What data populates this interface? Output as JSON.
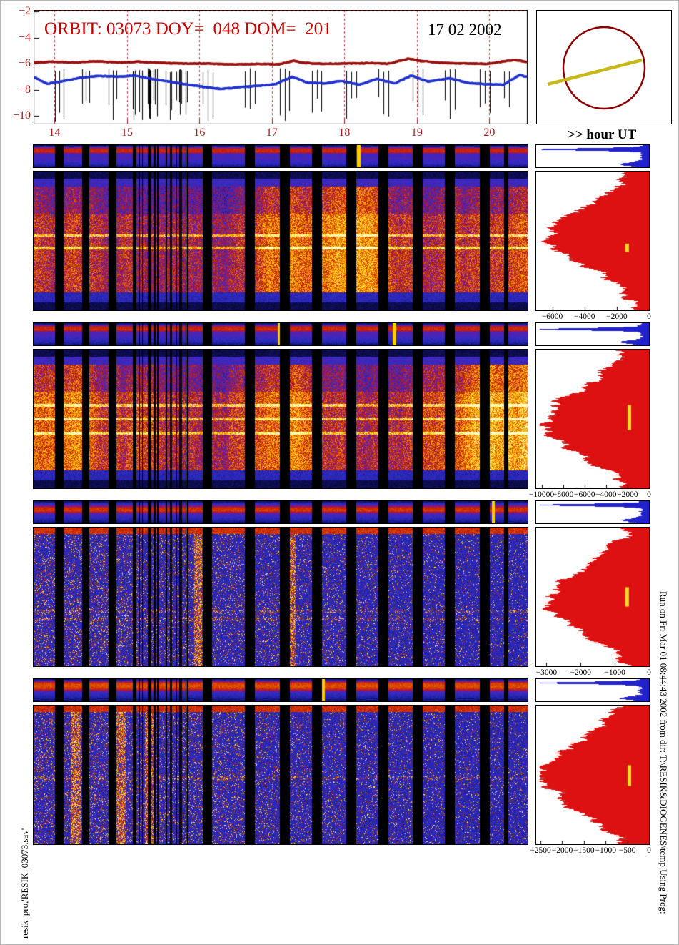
{
  "header": {
    "title": "ORBIT: 03073 DOY=  048 DOM=  201",
    "date": "17 02 2002",
    "hour_label": ">> hour UT"
  },
  "side_texts": {
    "left": "resik_pro,'RESIK_03073.sav'",
    "right": "Run on Fri Mar 01 08:44:43 2002  from dir: T:\\RESIK&DIOGENES\\temp Using Prog:"
  },
  "colors": {
    "title_red": "#c00000",
    "axis_red": "#a02020",
    "grid_red": "#cc3333",
    "curve_red": "#991111",
    "curve_blue": "#2233cc",
    "hist_red": "#dd1111",
    "hist_blue": "#2222cc",
    "mark_yellow": "#eedd22",
    "sun_circle": "#8b0000",
    "sun_line": "#c8b818",
    "frame": "#000000"
  },
  "chart_data": {
    "type": "heatmap",
    "title": "RESIK orbit 03073 summary: X-ray light curves (log flux vs hour UT), four channel spectrograms vs time, and per-channel integrated profiles",
    "palette": [
      "#000000",
      "#14147a",
      "#2e2ec8",
      "#7a1696",
      "#c81e00",
      "#f07800",
      "#ffd200",
      "#ffffc8"
    ],
    "top_plot": {
      "type": "line",
      "xlabel": "hour UT",
      "x_range": [
        13.71,
        20.53
      ],
      "y_range": [
        -10,
        -2
      ],
      "x_ticks": [
        14,
        15,
        16,
        17,
        18,
        19,
        20
      ],
      "y_ticks": [
        -2,
        -4,
        -6,
        -8,
        -10
      ],
      "grid": "red dashed vertical at each hour",
      "series": [
        {
          "name": "red-flux-curve",
          "color_key": "curve_red",
          "points": [
            [
              13.72,
              -5.92
            ],
            [
              14.0,
              -5.86
            ],
            [
              14.3,
              -5.92
            ],
            [
              14.55,
              -5.82
            ],
            [
              14.9,
              -5.92
            ],
            [
              15.15,
              -5.86
            ],
            [
              15.5,
              -5.96
            ],
            [
              15.8,
              -6.0
            ],
            [
              16.1,
              -6.0
            ],
            [
              16.45,
              -6.06
            ],
            [
              16.8,
              -6.02
            ],
            [
              17.1,
              -6.06
            ],
            [
              17.3,
              -5.78
            ],
            [
              17.45,
              -5.96
            ],
            [
              17.7,
              -6.02
            ],
            [
              18.0,
              -6.0
            ],
            [
              18.35,
              -5.96
            ],
            [
              18.6,
              -6.02
            ],
            [
              18.88,
              -5.62
            ],
            [
              19.05,
              -5.8
            ],
            [
              19.35,
              -5.95
            ],
            [
              19.7,
              -6.0
            ],
            [
              20.0,
              -6.02
            ],
            [
              20.2,
              -5.82
            ],
            [
              20.35,
              -5.72
            ],
            [
              20.52,
              -5.88
            ]
          ]
        },
        {
          "name": "blue-flux-curve",
          "color_key": "curve_blue",
          "points": [
            [
              13.72,
              -7.05
            ],
            [
              13.9,
              -7.55
            ],
            [
              14.1,
              -7.35
            ],
            [
              14.35,
              -7.1
            ],
            [
              14.6,
              -6.95
            ],
            [
              14.9,
              -7.0
            ],
            [
              15.1,
              -6.92
            ],
            [
              15.35,
              -7.18
            ],
            [
              15.6,
              -7.4
            ],
            [
              15.85,
              -7.62
            ],
            [
              16.05,
              -7.78
            ],
            [
              16.3,
              -7.95
            ],
            [
              16.55,
              -7.82
            ],
            [
              16.8,
              -7.72
            ],
            [
              17.05,
              -7.58
            ],
            [
              17.28,
              -7.02
            ],
            [
              17.5,
              -7.48
            ],
            [
              17.75,
              -7.52
            ],
            [
              17.95,
              -7.32
            ],
            [
              18.2,
              -7.62
            ],
            [
              18.45,
              -7.18
            ],
            [
              18.7,
              -7.52
            ],
            [
              18.92,
              -6.92
            ],
            [
              19.15,
              -7.38
            ],
            [
              19.45,
              -7.12
            ],
            [
              19.7,
              -7.48
            ],
            [
              19.95,
              -7.58
            ],
            [
              20.2,
              -7.62
            ],
            [
              20.42,
              -6.85
            ],
            [
              20.52,
              -7.05
            ]
          ]
        }
      ]
    },
    "gaps": [
      [
        0.043,
        0.06
      ],
      [
        0.098,
        0.113
      ],
      [
        0.152,
        0.168
      ],
      [
        0.343,
        0.362
      ],
      [
        0.428,
        0.448
      ],
      [
        0.498,
        0.518
      ],
      [
        0.563,
        0.583
      ],
      [
        0.633,
        0.653
      ],
      [
        0.698,
        0.718
      ],
      [
        0.768,
        0.788
      ],
      [
        0.833,
        0.853
      ],
      [
        0.903,
        0.923
      ],
      [
        0.953,
        0.962
      ]
    ],
    "barcode": {
      "start": 0.195,
      "end": 0.315,
      "lines": 22
    },
    "rows": [
      {
        "name": "channel-1",
        "style": "hot",
        "seed": 11,
        "base": 0.68,
        "lines": [
          0.46,
          0.55
        ],
        "strip_bands": [
          0.1,
          0.55,
          0.58,
          0.3,
          0.34,
          0.3,
          0.26,
          0.08
        ],
        "hot_columns": [
          0.657
        ],
        "hist_ticks": [
          -6000,
          -4000,
          -2000,
          0
        ],
        "hist_range": 7000,
        "hist_center": 0.45,
        "hist_width": 0.3,
        "hist_amp": 0.78,
        "blue_spike_y": 0.18,
        "mark": {
          "x": 0.79,
          "y": 0.52,
          "h": 0.06
        }
      },
      {
        "name": "channel-2",
        "style": "hot",
        "seed": 22,
        "base": 0.74,
        "lines": [
          0.4,
          0.5,
          0.6
        ],
        "strip_bands": [
          0.1,
          0.56,
          0.6,
          0.32,
          0.34,
          0.28,
          0.24,
          0.08
        ],
        "hot_columns": [
          0.497,
          0.73
        ],
        "hist_ticks": [
          -10000,
          -8000,
          -6000,
          -4000,
          -2000,
          0
        ],
        "hist_range": 10500,
        "hist_center": 0.5,
        "hist_width": 0.36,
        "hist_amp": 0.82,
        "blue_spike_y": 0.26,
        "mark": {
          "x": 0.81,
          "y": 0.4,
          "h": 0.18
        }
      },
      {
        "name": "channel-3",
        "style": "cool",
        "seed": 33,
        "lines": [
          0.6,
          0.66
        ],
        "strip_bands": [
          0.12,
          0.32,
          0.58,
          0.62,
          0.34,
          0.28,
          0.22,
          0.08
        ],
        "hot_columns": [
          0.93
        ],
        "bright_columns": [
          [
            0.325,
            0.34
          ],
          [
            0.515,
            0.53
          ]
        ],
        "hist_ticks": [
          -3000,
          -2000,
          -1000,
          0
        ],
        "hist_range": 3300,
        "hist_center": 0.5,
        "hist_width": 0.34,
        "hist_amp": 0.8,
        "blue_spike_y": 0.16,
        "mark": {
          "x": 0.79,
          "y": 0.43,
          "h": 0.14
        }
      },
      {
        "name": "channel-4",
        "style": "cool",
        "seed": 44,
        "lines": [
          0.52
        ],
        "strip_bands": [
          0.12,
          0.6,
          0.66,
          0.6,
          0.32,
          0.26,
          0.2,
          0.08
        ],
        "hot_columns": [
          0.585
        ],
        "bright_columns": [
          [
            0.075,
            0.095
          ],
          [
            0.165,
            0.185
          ],
          [
            0.225,
            0.245
          ]
        ],
        "hist_ticks": [
          -2500,
          -2000,
          -1500,
          -1000,
          -500,
          0
        ],
        "hist_range": 2600,
        "hist_center": 0.48,
        "hist_width": 0.38,
        "hist_amp": 0.84,
        "blue_spike_y": 0.16,
        "mark": {
          "x": 0.81,
          "y": 0.43,
          "h": 0.15
        }
      }
    ]
  }
}
